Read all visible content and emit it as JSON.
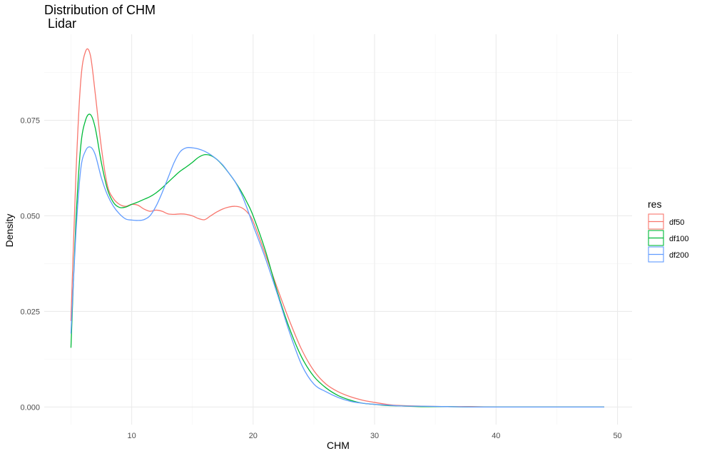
{
  "chart_data": {
    "type": "line",
    "title": "Distribution of CHM\n Lidar",
    "xlabel": "CHM",
    "ylabel": "Density",
    "xlim": [
      2.8,
      51.2
    ],
    "ylim": [
      -0.0046,
      0.0975
    ],
    "x_ticks": [
      10,
      20,
      30,
      40,
      50
    ],
    "y_ticks": [
      0.0,
      0.025,
      0.05,
      0.075
    ],
    "x_tick_labels": [
      "10",
      "20",
      "30",
      "40",
      "50"
    ],
    "y_tick_labels": [
      "0.000",
      "0.025",
      "0.050",
      "0.075"
    ],
    "grid": true,
    "legend": {
      "title": "res",
      "position": "right"
    },
    "series": [
      {
        "name": "df50",
        "color": "#F8766D",
        "x": [
          5.0,
          5.4,
          5.8,
          6.2,
          6.6,
          7.0,
          7.5,
          8.0,
          8.5,
          9.0,
          9.5,
          10.0,
          10.5,
          11.0,
          11.5,
          12.0,
          12.5,
          13.0,
          13.5,
          14.0,
          14.5,
          15.0,
          15.5,
          16.0,
          16.5,
          17.0,
          17.5,
          18.0,
          18.5,
          19.0,
          19.5,
          20.0,
          21.0,
          22.0,
          23.0,
          24.0,
          25.0,
          26.0,
          27.0,
          28.0,
          29.0,
          30.0,
          31.0,
          32.0,
          34.0,
          36.0,
          38.0,
          40.0,
          42.0,
          44.0,
          46.0,
          48.0,
          48.9
        ],
        "values": [
          0.0225,
          0.06,
          0.085,
          0.093,
          0.092,
          0.082,
          0.068,
          0.058,
          0.0545,
          0.053,
          0.0525,
          0.053,
          0.0528,
          0.0518,
          0.0512,
          0.0515,
          0.0512,
          0.0505,
          0.0504,
          0.0505,
          0.0504,
          0.05,
          0.0493,
          0.049,
          0.05,
          0.051,
          0.0518,
          0.0523,
          0.0525,
          0.0522,
          0.051,
          0.0485,
          0.04,
          0.031,
          0.0225,
          0.015,
          0.0095,
          0.006,
          0.004,
          0.0027,
          0.0018,
          0.0012,
          0.0007,
          0.0004,
          0.0002,
          0.0001,
          0.0001,
          0.0,
          0.0,
          0.0,
          0.0,
          0.0,
          0.0
        ]
      },
      {
        "name": "df100",
        "color": "#00BA38",
        "x": [
          5.0,
          5.4,
          5.8,
          6.2,
          6.6,
          7.0,
          7.5,
          8.0,
          8.5,
          9.0,
          9.5,
          10.0,
          10.5,
          11.0,
          11.5,
          12.0,
          12.5,
          13.0,
          13.5,
          14.0,
          14.5,
          15.0,
          15.5,
          16.0,
          16.5,
          17.0,
          17.5,
          18.0,
          18.5,
          19.0,
          19.5,
          20.0,
          21.0,
          22.0,
          23.0,
          24.0,
          25.0,
          26.0,
          27.0,
          28.0,
          29.0,
          30.0,
          31.0,
          32.0,
          34.0,
          36.0,
          38.0,
          40.0,
          42.0,
          44.0,
          46.0,
          48.0,
          48.9
        ],
        "values": [
          0.0155,
          0.048,
          0.068,
          0.075,
          0.0765,
          0.073,
          0.064,
          0.057,
          0.0535,
          0.0522,
          0.0523,
          0.053,
          0.0536,
          0.0543,
          0.055,
          0.056,
          0.0573,
          0.0588,
          0.0603,
          0.0617,
          0.0628,
          0.064,
          0.0653,
          0.066,
          0.0658,
          0.0648,
          0.0632,
          0.0612,
          0.059,
          0.0565,
          0.0535,
          0.05,
          0.041,
          0.03,
          0.0205,
          0.013,
          0.008,
          0.005,
          0.003,
          0.0018,
          0.001,
          0.0007,
          0.0004,
          0.0003,
          0.0001,
          0.0001,
          0.0,
          0.0,
          0.0,
          0.0,
          0.0,
          0.0,
          0.0
        ]
      },
      {
        "name": "df200",
        "color": "#619CFF",
        "x": [
          5.0,
          5.4,
          5.8,
          6.2,
          6.6,
          7.0,
          7.5,
          8.0,
          8.5,
          9.0,
          9.5,
          10.0,
          10.5,
          11.0,
          11.5,
          12.0,
          12.5,
          13.0,
          13.5,
          14.0,
          14.5,
          15.0,
          15.5,
          16.0,
          16.5,
          17.0,
          17.5,
          18.0,
          18.5,
          19.0,
          19.5,
          20.0,
          21.0,
          22.0,
          23.0,
          24.0,
          25.0,
          26.0,
          27.0,
          28.0,
          29.0,
          30.0,
          31.0,
          32.0,
          34.0,
          36.0,
          38.0,
          40.0,
          42.0,
          44.0,
          46.0,
          48.0,
          48.9
        ],
        "values": [
          0.0192,
          0.045,
          0.062,
          0.067,
          0.068,
          0.066,
          0.06,
          0.0555,
          0.0525,
          0.0505,
          0.0492,
          0.0489,
          0.0488,
          0.049,
          0.05,
          0.0525,
          0.056,
          0.06,
          0.064,
          0.0668,
          0.0678,
          0.0678,
          0.0675,
          0.0669,
          0.066,
          0.0648,
          0.0633,
          0.0612,
          0.059,
          0.056,
          0.052,
          0.0475,
          0.039,
          0.0295,
          0.0195,
          0.011,
          0.006,
          0.004,
          0.0025,
          0.0015,
          0.001,
          0.0007,
          0.0005,
          0.0003,
          0.0002,
          0.0001,
          0.0,
          0.0,
          0.0,
          0.0,
          0.0,
          0.0,
          0.0
        ]
      }
    ]
  }
}
